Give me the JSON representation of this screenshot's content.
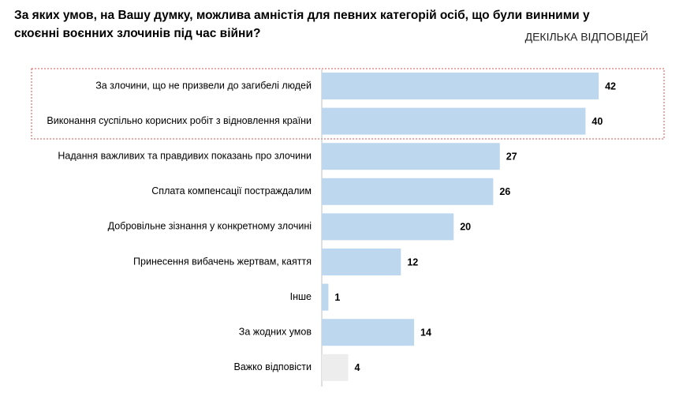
{
  "chart_data": {
    "type": "bar",
    "orientation": "horizontal",
    "title": [
      "За яких умов, на Вашу думку, можлива амністія для певних категорій осіб, що були винними у",
      "скоєнні воєнних злочинів під час війни?"
    ],
    "subtitle": "ДЕКІЛЬКА ВІДПОВІДЕЙ",
    "categories": [
      "За злочини, що не призвели до загибелі людей",
      "Виконання суспільно корисних робіт з відновлення країни",
      "Надання важливих та правдивих показань про злочини",
      "Сплата компенсації постраждалим",
      "Добровільне зізнання у конкретному злочині",
      "Принесення вибачень жертвам, каяття",
      "Інше",
      "За жодних умов",
      "Важко відповісти"
    ],
    "values": [
      42,
      40,
      27,
      26,
      20,
      12,
      1,
      14,
      4
    ],
    "colors": [
      "#bdd7ee",
      "#bdd7ee",
      "#bdd7ee",
      "#bdd7ee",
      "#bdd7ee",
      "#bdd7ee",
      "#bdd7ee",
      "#bdd7ee",
      "#ededed"
    ]
  }
}
